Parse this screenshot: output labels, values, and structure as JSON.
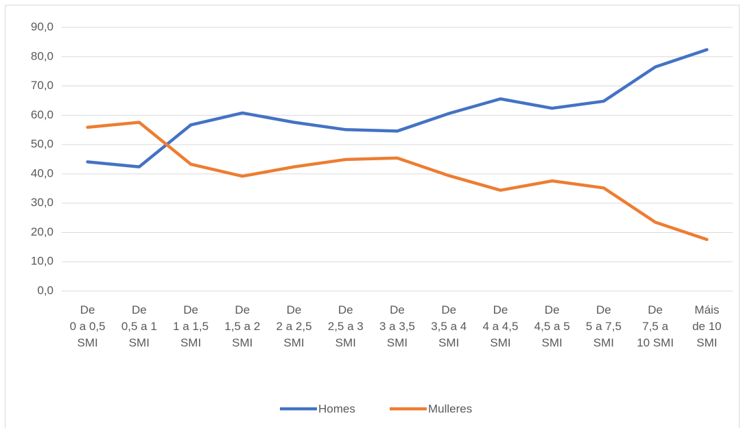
{
  "chart_data": {
    "type": "line",
    "categories": [
      "De\n0 a 0,5\nSMI",
      "De\n0,5 a 1\nSMI",
      "De\n1 a 1,5\nSMI",
      "De\n1,5 a 2\nSMI",
      "De\n2 a 2,5\nSMI",
      "De\n2,5 a 3\nSMI",
      "De\n3 a 3,5\nSMI",
      "De\n3,5 a 4\nSMI",
      "De\n4 a 4,5\nSMI",
      "De\n4,5 a 5\nSMI",
      "De\n5 a 7,5\nSMI",
      "De\n7,5 a\n10 SMI",
      "Máis\nde 10\nSMI"
    ],
    "series": [
      {
        "name": "Homes",
        "color": "#4472c4",
        "values": [
          44.1,
          42.4,
          56.7,
          60.8,
          57.6,
          55.1,
          54.6,
          60.6,
          65.6,
          62.4,
          64.8,
          76.5,
          82.4
        ]
      },
      {
        "name": "Mulleres",
        "color": "#ed7d31",
        "values": [
          55.9,
          57.6,
          43.3,
          39.2,
          42.4,
          44.9,
          45.4,
          39.4,
          34.4,
          37.6,
          35.2,
          23.5,
          17.6
        ]
      }
    ],
    "ylim": [
      0,
      90
    ],
    "yticks": [
      {
        "value": 0,
        "label": "0,0"
      },
      {
        "value": 10,
        "label": "10,0"
      },
      {
        "value": 20,
        "label": "20,0"
      },
      {
        "value": 30,
        "label": "30,0"
      },
      {
        "value": 40,
        "label": "40,0"
      },
      {
        "value": 50,
        "label": "50,0"
      },
      {
        "value": 60,
        "label": "60,0"
      },
      {
        "value": 70,
        "label": "70,0"
      },
      {
        "value": 80,
        "label": "80,0"
      },
      {
        "value": 90,
        "label": "90,0"
      }
    ],
    "grid": true,
    "legend": "bottom"
  }
}
